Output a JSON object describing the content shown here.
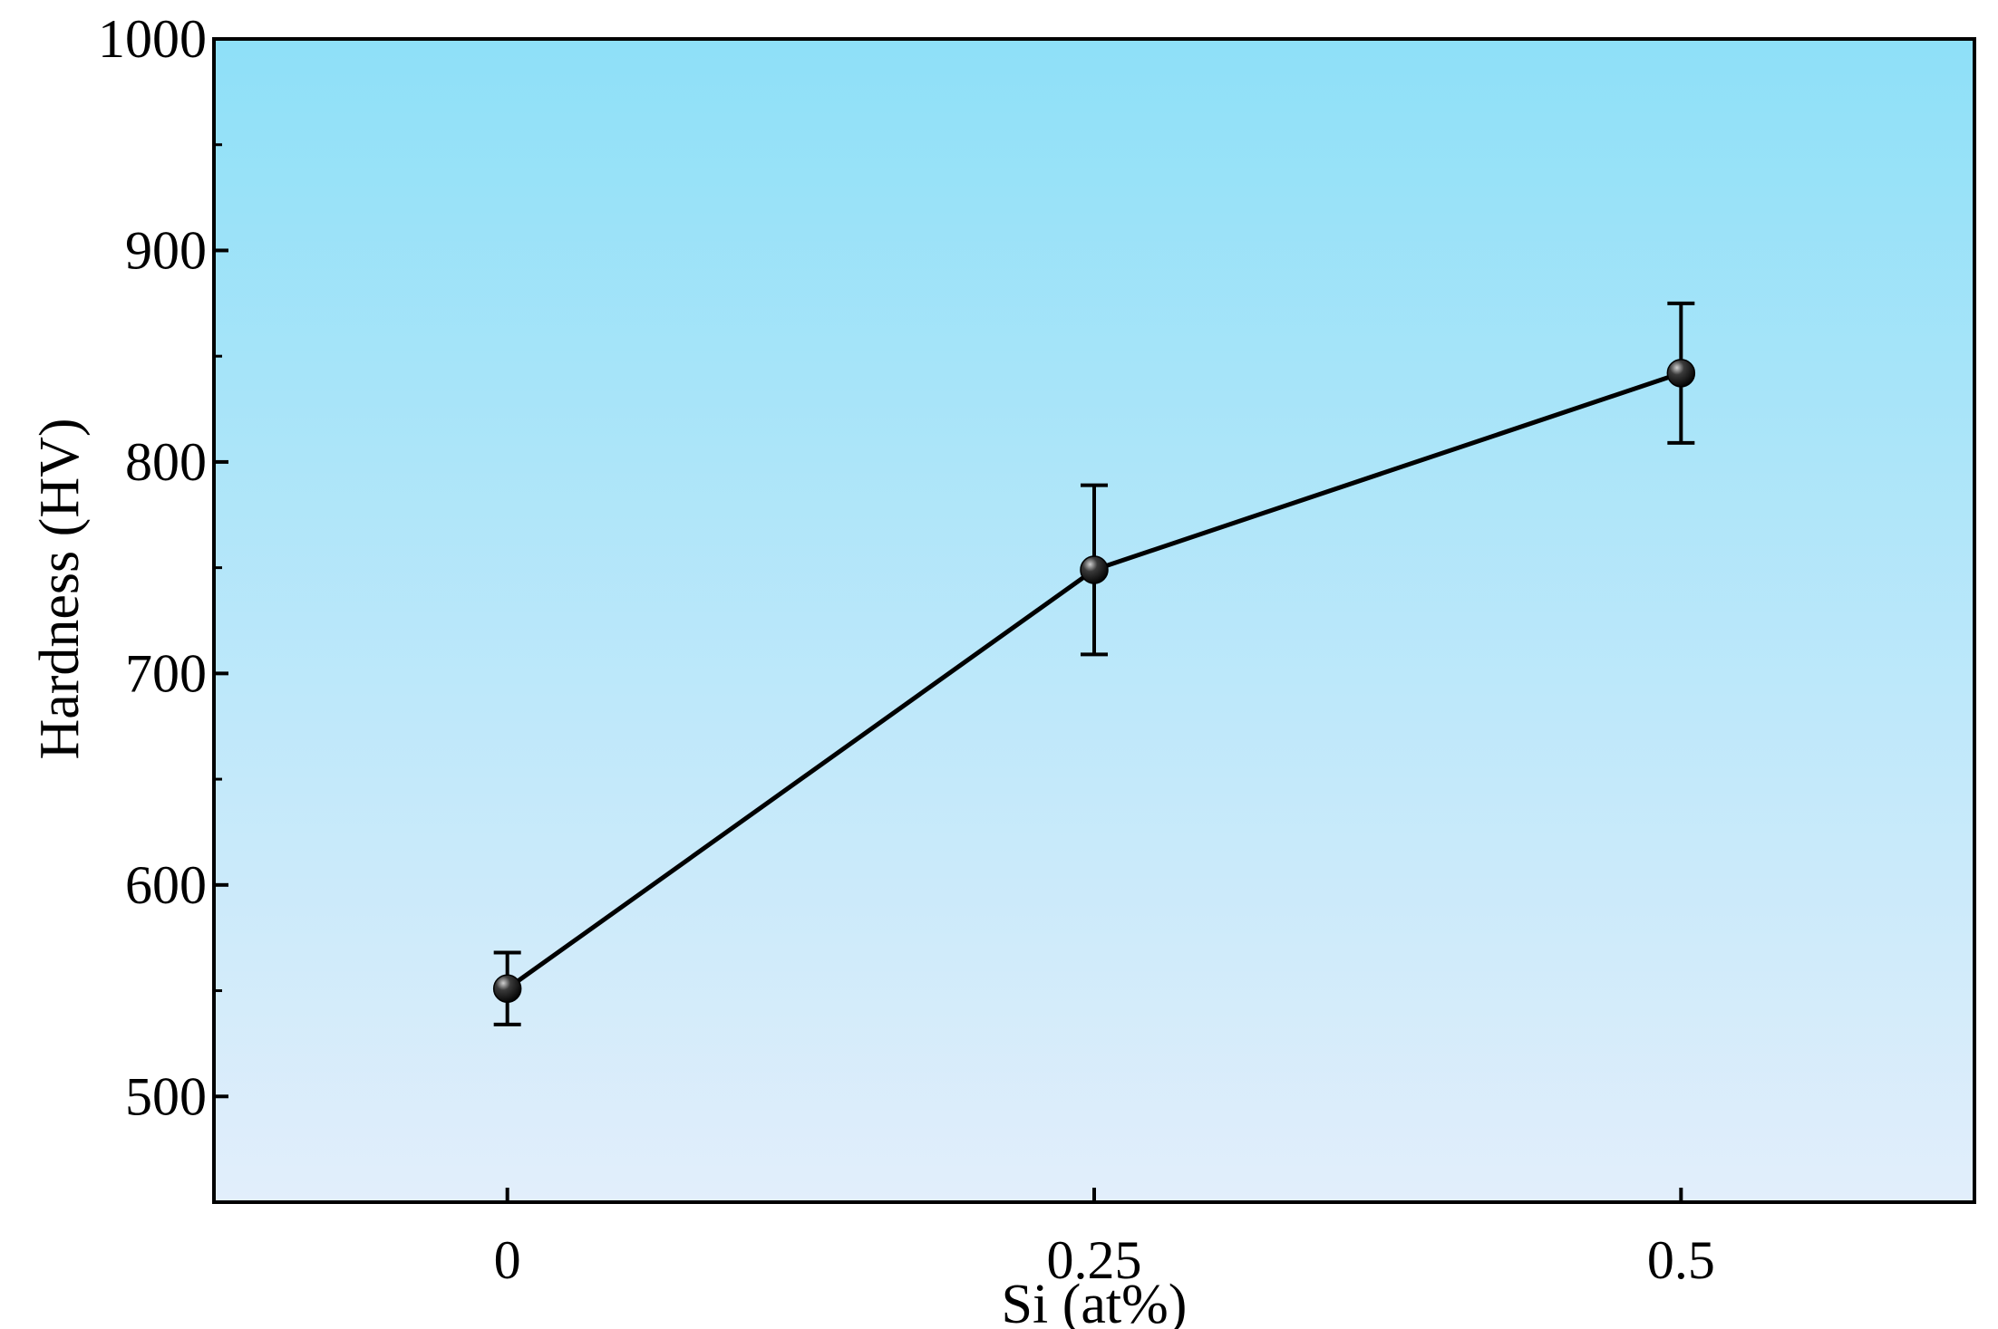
{
  "chart_data": {
    "type": "line",
    "title": "",
    "xlabel": "Si (at%)",
    "ylabel": "Hardness (HV)",
    "x_ticks": [
      "0",
      "0.25",
      "0.5"
    ],
    "y_ticks": [
      "500",
      "600",
      "700",
      "800",
      "900",
      "1000"
    ],
    "xlim": [
      -0.125,
      0.625
    ],
    "ylim": [
      450,
      1000
    ],
    "grid": false,
    "legend": "none",
    "background_gradient": [
      "#8ee0f8",
      "#e2eefb"
    ],
    "line_color": "#000000",
    "marker": "filled-circle",
    "series": [
      {
        "x": [
          0,
          0.25,
          0.5
        ],
        "y": [
          551,
          749,
          842
        ],
        "error": [
          17,
          40,
          33
        ]
      }
    ]
  }
}
